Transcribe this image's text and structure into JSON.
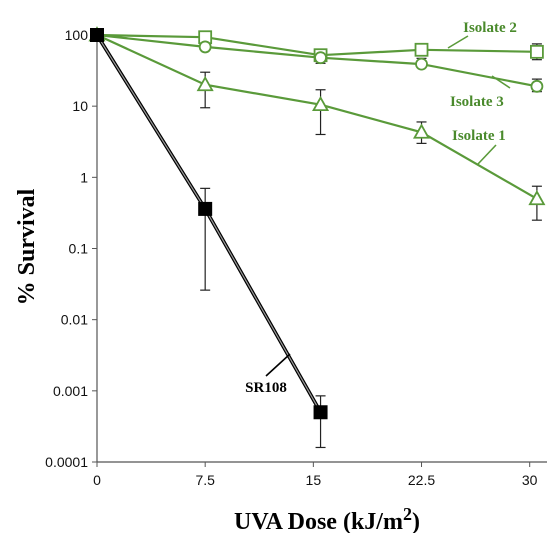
{
  "chart_data": {
    "type": "line",
    "xlabel": "UVA Dose (kJ/m",
    "xlabel_sup": "2",
    "xlabel_close": ")",
    "ylabel": "% Survival",
    "y_scale": "log",
    "xlim": [
      0,
      31.2
    ],
    "ylim": [
      0.0001,
      100
    ],
    "x_ticks": [
      0,
      7.5,
      15,
      22.5,
      30
    ],
    "x_tick_labels": [
      "0",
      "7.5",
      "15",
      "22.5",
      "30"
    ],
    "y_ticks": [
      0.0001,
      0.001,
      0.01,
      0.1,
      1,
      10,
      100
    ],
    "y_tick_labels": [
      "0.0001",
      "0.001",
      "0.01",
      "0.1",
      "1",
      "10",
      "100"
    ],
    "series": [
      {
        "name": "Isolate 2",
        "color": "#5a9a3a",
        "marker": "square-open",
        "x": [
          0,
          7.5,
          15.5,
          22.5,
          30.5
        ],
        "y": [
          100,
          93,
          52,
          62,
          58
        ],
        "err_low": [
          null,
          null,
          40,
          null,
          45
        ],
        "err_high": [
          null,
          null,
          62,
          null,
          75
        ]
      },
      {
        "name": "Isolate 3",
        "color": "#5a9a3a",
        "marker": "circle-open",
        "x": [
          0,
          7.5,
          15.5,
          22.5,
          30.5
        ],
        "y": [
          100,
          68,
          48,
          39,
          19
        ],
        "err_low": [
          null,
          null,
          null,
          35,
          16
        ],
        "err_high": [
          null,
          null,
          null,
          47,
          24
        ]
      },
      {
        "name": "Isolate 1",
        "color": "#5a9a3a",
        "marker": "triangle-open",
        "x": [
          0,
          7.5,
          15.5,
          22.5,
          30.5
        ],
        "y": [
          100,
          20,
          10.5,
          4.3,
          0.5
        ],
        "err_low": [
          null,
          9.5,
          4,
          3,
          0.25
        ],
        "err_high": [
          null,
          30,
          17,
          6,
          0.75
        ]
      },
      {
        "name": "SR108",
        "color": "#000000",
        "marker": "square-filled",
        "x": [
          0,
          7.5,
          15.5
        ],
        "y": [
          100,
          0.36,
          0.0005
        ],
        "err_low": [
          null,
          0.026,
          0.00016
        ],
        "err_high": [
          null,
          0.7,
          0.00085
        ]
      }
    ],
    "annotations": [
      {
        "text": "Isolate 2",
        "series": "Isolate 2"
      },
      {
        "text": "Isolate 3",
        "series": "Isolate 3"
      },
      {
        "text": "Isolate 1",
        "series": "Isolate 1"
      },
      {
        "text": "SR108",
        "series": "SR108"
      }
    ]
  }
}
